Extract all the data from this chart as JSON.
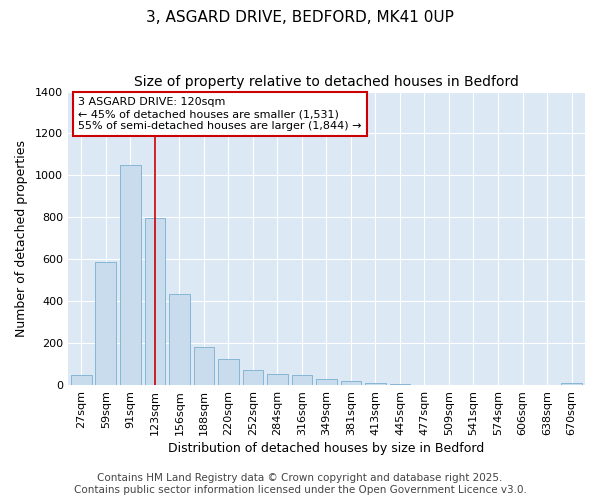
{
  "title": "3, ASGARD DRIVE, BEDFORD, MK41 0UP",
  "subtitle": "Size of property relative to detached houses in Bedford",
  "xlabel": "Distribution of detached houses by size in Bedford",
  "ylabel": "Number of detached properties",
  "categories": [
    "27sqm",
    "59sqm",
    "91sqm",
    "123sqm",
    "156sqm",
    "188sqm",
    "220sqm",
    "252sqm",
    "284sqm",
    "316sqm",
    "349sqm",
    "381sqm",
    "413sqm",
    "445sqm",
    "477sqm",
    "509sqm",
    "541sqm",
    "574sqm",
    "606sqm",
    "638sqm",
    "670sqm"
  ],
  "values": [
    50,
    585,
    1050,
    795,
    435,
    180,
    125,
    70,
    55,
    50,
    27,
    18,
    10,
    5,
    2,
    1,
    1,
    0,
    0,
    0,
    8
  ],
  "bar_color": "#c8dcee",
  "bar_edge_color": "#7aaed0",
  "vline_x_index": 3,
  "vline_color": "#cc0000",
  "annotation_text": "3 ASGARD DRIVE: 120sqm\n← 45% of detached houses are smaller (1,531)\n55% of semi-detached houses are larger (1,844) →",
  "annotation_box_facecolor": "#ffffff",
  "annotation_box_edgecolor": "#cc0000",
  "ylim": [
    0,
    1400
  ],
  "yticks": [
    0,
    200,
    400,
    600,
    800,
    1000,
    1200,
    1400
  ],
  "fig_bg_color": "#ffffff",
  "plot_bg_color": "#dce9f5",
  "grid_color": "#ffffff",
  "footer": "Contains HM Land Registry data © Crown copyright and database right 2025.\nContains public sector information licensed under the Open Government Licence v3.0.",
  "title_fontsize": 11,
  "subtitle_fontsize": 10,
  "axis_label_fontsize": 9,
  "tick_fontsize": 8,
  "annotation_fontsize": 8,
  "footer_fontsize": 7.5
}
